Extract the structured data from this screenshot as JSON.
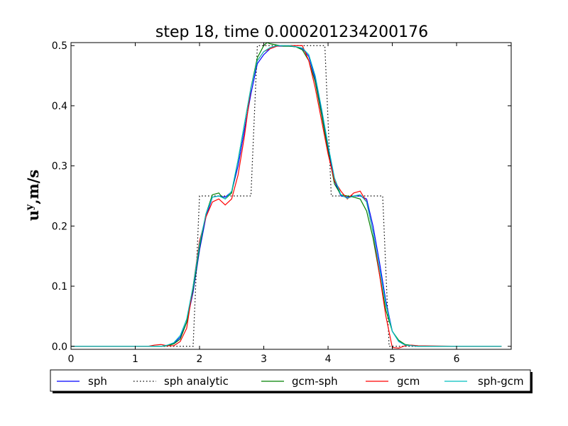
{
  "chart_data": {
    "type": "line",
    "title": "step 18, time 0.000201234200176",
    "xlabel": "",
    "ylabel": "u^y, m/s",
    "ylabel_main": "u",
    "ylabel_sup": "y",
    "ylabel_rest": ",m/s",
    "xlim": [
      0,
      6.85
    ],
    "ylim": [
      -0.005,
      0.505
    ],
    "xticks": [
      0,
      1,
      2,
      3,
      4,
      5,
      6
    ],
    "yticks": [
      0.0,
      0.1,
      0.2,
      0.3,
      0.4,
      0.5
    ],
    "xtick_labels": [
      "0",
      "1",
      "2",
      "3",
      "4",
      "5",
      "6"
    ],
    "ytick_labels": [
      "0.0",
      "0.1",
      "0.2",
      "0.3",
      "0.4",
      "0.5"
    ],
    "grid": false,
    "legend_position": "below",
    "series": [
      {
        "name": "sph",
        "color": "#0000ff",
        "style": "solid",
        "x": [
          0,
          0.5,
          1.0,
          1.2,
          1.4,
          1.5,
          1.6,
          1.7,
          1.8,
          1.9,
          2.0,
          2.1,
          2.2,
          2.3,
          2.4,
          2.5,
          2.6,
          2.7,
          2.8,
          2.9,
          3.0,
          3.1,
          3.2,
          3.3,
          3.4,
          3.5,
          3.6,
          3.7,
          3.8,
          3.9,
          4.0,
          4.1,
          4.2,
          4.3,
          4.4,
          4.5,
          4.6,
          4.7,
          4.8,
          4.9,
          5.0,
          5.1,
          5.2,
          5.4,
          6.0,
          6.7
        ],
        "y": [
          0,
          0,
          0,
          0,
          0,
          0.001,
          0.005,
          0.015,
          0.04,
          0.09,
          0.16,
          0.215,
          0.248,
          0.25,
          0.248,
          0.257,
          0.3,
          0.36,
          0.42,
          0.47,
          0.485,
          0.495,
          0.499,
          0.499,
          0.499,
          0.498,
          0.495,
          0.482,
          0.445,
          0.39,
          0.33,
          0.275,
          0.25,
          0.248,
          0.25,
          0.25,
          0.245,
          0.2,
          0.14,
          0.075,
          0.025,
          0.008,
          0.002,
          0,
          0,
          0
        ]
      },
      {
        "name": "sph analytic",
        "color": "#000000",
        "style": "dotted",
        "x": [
          0,
          1.9,
          2.0,
          2.8,
          2.9,
          3.95,
          4.05,
          4.85,
          4.95,
          6.7
        ],
        "y": [
          0,
          0,
          0.25,
          0.25,
          0.5,
          0.5,
          0.25,
          0.25,
          0,
          0
        ]
      },
      {
        "name": "gcm-sph",
        "color": "#008000",
        "style": "solid",
        "x": [
          0,
          0.5,
          1.0,
          1.2,
          1.4,
          1.5,
          1.6,
          1.7,
          1.8,
          1.9,
          2.0,
          2.1,
          2.2,
          2.3,
          2.35,
          2.4,
          2.5,
          2.6,
          2.7,
          2.8,
          2.9,
          3.0,
          3.05,
          3.1,
          3.2,
          3.3,
          3.4,
          3.5,
          3.6,
          3.7,
          3.8,
          3.9,
          4.0,
          4.1,
          4.2,
          4.3,
          4.4,
          4.5,
          4.6,
          4.7,
          4.8,
          4.9,
          5.0,
          5.1,
          5.2,
          5.4,
          6.0,
          6.7
        ],
        "y": [
          0,
          0,
          0,
          0,
          0,
          0.001,
          0.004,
          0.012,
          0.04,
          0.095,
          0.165,
          0.22,
          0.252,
          0.255,
          0.248,
          0.245,
          0.255,
          0.31,
          0.37,
          0.43,
          0.48,
          0.5,
          0.505,
          0.503,
          0.501,
          0.499,
          0.499,
          0.498,
          0.493,
          0.475,
          0.44,
          0.385,
          0.325,
          0.27,
          0.252,
          0.25,
          0.248,
          0.245,
          0.225,
          0.18,
          0.12,
          0.06,
          0.025,
          0.01,
          0.003,
          0,
          0,
          0
        ]
      },
      {
        "name": "gcm",
        "color": "#ff0000",
        "style": "solid",
        "x": [
          0,
          0.5,
          1.0,
          1.2,
          1.3,
          1.4,
          1.5,
          1.6,
          1.7,
          1.8,
          1.9,
          2.0,
          2.1,
          2.2,
          2.3,
          2.4,
          2.5,
          2.6,
          2.7,
          2.8,
          2.9,
          3.0,
          3.1,
          3.2,
          3.3,
          3.4,
          3.5,
          3.6,
          3.7,
          3.8,
          3.9,
          4.0,
          4.1,
          4.2,
          4.3,
          4.4,
          4.5,
          4.6,
          4.7,
          4.8,
          4.9,
          5.0,
          5.1,
          5.2,
          5.3,
          5.4,
          6.0,
          6.7
        ],
        "y": [
          0,
          0,
          0,
          0,
          0.002,
          0.003,
          0.001,
          0.001,
          0.008,
          0.03,
          0.1,
          0.175,
          0.215,
          0.24,
          0.245,
          0.235,
          0.245,
          0.285,
          0.35,
          0.43,
          0.475,
          0.49,
          0.495,
          0.499,
          0.5,
          0.5,
          0.5,
          0.5,
          0.475,
          0.43,
          0.375,
          0.32,
          0.275,
          0.258,
          0.245,
          0.255,
          0.258,
          0.24,
          0.19,
          0.12,
          0.05,
          -0.002,
          -0.003,
          0.001,
          0.002,
          0.001,
          0,
          0
        ]
      },
      {
        "name": "sph-gcm",
        "color": "#00bfbf",
        "style": "solid",
        "x": [
          0,
          0.5,
          1.0,
          1.2,
          1.4,
          1.5,
          1.6,
          1.7,
          1.8,
          1.9,
          2.0,
          2.1,
          2.2,
          2.3,
          2.4,
          2.5,
          2.6,
          2.7,
          2.8,
          2.9,
          3.0,
          3.1,
          3.2,
          3.3,
          3.4,
          3.5,
          3.6,
          3.7,
          3.8,
          3.9,
          4.0,
          4.1,
          4.2,
          4.3,
          4.4,
          4.5,
          4.6,
          4.7,
          4.8,
          4.9,
          5.0,
          5.1,
          5.2,
          5.4,
          6.0,
          6.7
        ],
        "y": [
          0,
          0,
          0,
          0,
          0,
          0.002,
          0.006,
          0.018,
          0.045,
          0.1,
          0.17,
          0.22,
          0.248,
          0.25,
          0.245,
          0.258,
          0.31,
          0.37,
          0.43,
          0.475,
          0.49,
          0.497,
          0.5,
          0.5,
          0.5,
          0.498,
          0.496,
          0.485,
          0.45,
          0.395,
          0.335,
          0.28,
          0.252,
          0.246,
          0.25,
          0.252,
          0.24,
          0.19,
          0.13,
          0.07,
          0.025,
          0.008,
          0.002,
          0,
          0,
          0
        ]
      }
    ]
  }
}
